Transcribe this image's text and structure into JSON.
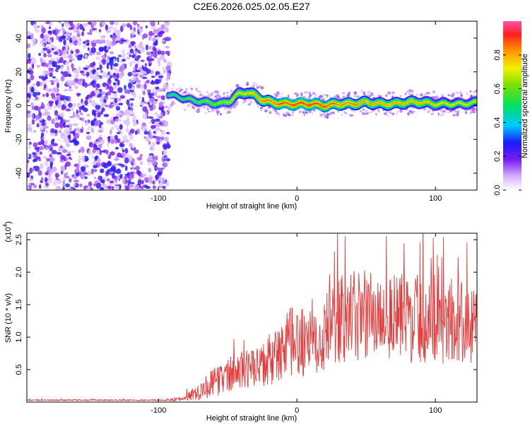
{
  "title": "C2E6.2026.025.02.05.E27",
  "chart_data": [
    {
      "type": "heatmap",
      "xlabel": "Height of straight line (km)",
      "ylabel": "Frequency (Hz)",
      "xlim": [
        -195,
        130
      ],
      "ylim": [
        -50,
        50
      ],
      "xticks": [
        -100,
        0,
        100
      ],
      "xtick_labels": [
        "-100",
        "0",
        "100"
      ],
      "yticks": [
        -40,
        -20,
        0,
        20,
        40
      ],
      "ytick_labels": [
        "-40",
        "-20",
        "0",
        "20",
        "40"
      ],
      "colorbar": {
        "label": "Normalized spectral amplitude",
        "range": [
          0,
          1
        ],
        "ticks": [
          0.0,
          0.2,
          0.4,
          0.6,
          0.8
        ],
        "tick_labels": [
          "0.0",
          "0.2",
          "0.4",
          "0.6",
          "0.8"
        ]
      },
      "noise_region": {
        "x_range": [
          -195,
          -92
        ],
        "y_range": [
          -50,
          50
        ],
        "amplitude": [
          0.05,
          0.3
        ]
      },
      "ridge": {
        "x": [
          -95,
          -85,
          -75,
          -65,
          -55,
          -48,
          -42,
          -36,
          -30,
          -24,
          -18,
          -10,
          0,
          10,
          20,
          30,
          40,
          50,
          60,
          70,
          80,
          90,
          100,
          110,
          120,
          130
        ],
        "freq": [
          7,
          5,
          3,
          2,
          1,
          3,
          7,
          8,
          6,
          3,
          2,
          1,
          1,
          1,
          0,
          1,
          1,
          2,
          1,
          1,
          2,
          2,
          1,
          1,
          1,
          2
        ],
        "amplitude": [
          0.5,
          0.55,
          0.6,
          0.62,
          0.65,
          0.7,
          0.75,
          0.75,
          0.8,
          0.85,
          0.85,
          0.9,
          0.9,
          0.9,
          0.9,
          0.85,
          0.85,
          0.8,
          0.8,
          0.8,
          0.78,
          0.78,
          0.75,
          0.72,
          0.7,
          0.7
        ]
      }
    },
    {
      "type": "line",
      "xlabel": "Height of straight line (km)",
      "ylabel": "SNR (10 * v/v)",
      "y_multiplier": "(x10",
      "y_multiplier_exp": "4",
      "y_multiplier_close": ")",
      "xlim": [
        -195,
        130
      ],
      "ylim": [
        0,
        2.6
      ],
      "xticks": [
        -100,
        0,
        100
      ],
      "xtick_labels": [
        "-100",
        "0",
        "100"
      ],
      "yticks": [
        0.5,
        1.0,
        1.5,
        2.0,
        2.5
      ],
      "ytick_labels": [
        "0.5",
        "1.0",
        "1.5",
        "2.0",
        "2.5"
      ],
      "series": [
        {
          "name": "SNR",
          "color": "#e83a3a",
          "x": [
            -195,
            -150,
            -100,
            -85,
            -80,
            -75,
            -70,
            -65,
            -60,
            -55,
            -50,
            -45,
            -40,
            -35,
            -30,
            -25,
            -20,
            -15,
            -10,
            -5,
            0,
            10,
            20,
            30,
            40,
            50,
            60,
            70,
            80,
            90,
            100,
            110,
            120,
            130
          ],
          "y": [
            0.03,
            0.03,
            0.03,
            0.04,
            0.08,
            0.12,
            0.18,
            0.25,
            0.3,
            0.35,
            0.4,
            0.45,
            0.5,
            0.5,
            0.5,
            0.55,
            0.6,
            0.7,
            0.8,
            0.9,
            0.9,
            1.0,
            1.1,
            1.25,
            1.3,
            1.35,
            1.35,
            1.3,
            1.3,
            1.3,
            1.3,
            1.25,
            1.2,
            1.2
          ],
          "noise": [
            0.01,
            0.01,
            0.01,
            0.03,
            0.06,
            0.1,
            0.15,
            0.2,
            0.22,
            0.25,
            0.28,
            0.3,
            0.3,
            0.3,
            0.32,
            0.35,
            0.4,
            0.45,
            0.5,
            0.55,
            0.55,
            0.6,
            0.65,
            0.7,
            0.72,
            0.72,
            0.7,
            0.7,
            0.7,
            0.7,
            0.7,
            0.68,
            0.65,
            0.6
          ]
        }
      ]
    }
  ]
}
